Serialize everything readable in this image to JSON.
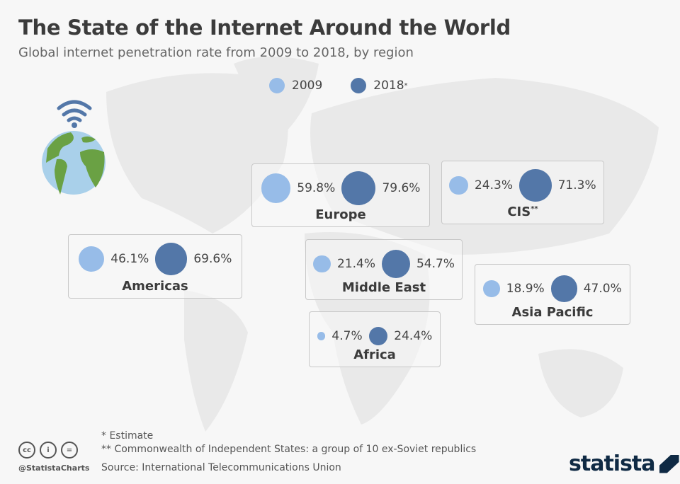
{
  "title": "The State of the Internet Around the World",
  "subtitle": "Global internet penetration rate from 2009 to 2018, by region",
  "chart_data": {
    "type": "bubble",
    "title": "The State of the Internet Around the World",
    "subtitle": "Global internet penetration rate from 2009 to 2018, by region",
    "legend": [
      {
        "label": "2009",
        "color": "#97bce8"
      },
      {
        "label": "2018",
        "mark": "*",
        "color": "#5377a8"
      }
    ],
    "legend_placement": "top-center",
    "categories": [
      "Europe",
      "CIS",
      "Americas",
      "Middle East",
      "Asia Pacific",
      "Africa"
    ],
    "category_marks": [
      "",
      "**",
      "",
      "",
      "",
      ""
    ],
    "series": [
      {
        "name": "2009",
        "values": [
          59.8,
          24.3,
          46.1,
          21.4,
          18.9,
          4.7
        ]
      },
      {
        "name": "2018",
        "values": [
          79.6,
          71.3,
          69.6,
          54.7,
          47.0,
          24.4
        ]
      }
    ],
    "value_labels": {
      "2009": [
        "59.8%",
        "24.3%",
        "46.1%",
        "21.4%",
        "18.9%",
        "4.7%"
      ],
      "2018": [
        "79.6%",
        "71.3%",
        "69.6%",
        "54.7%",
        "47.0%",
        "24.4%"
      ]
    },
    "unit": "%"
  },
  "footnotes": [
    "*   Estimate",
    "** Commonwealth of Independent States: a group of 10 ex-Soviet republics"
  ],
  "source": "Source: International Telecommunications Union",
  "handle": "@StatistaCharts",
  "logo": "statista",
  "license_icons": [
    "cc-icon",
    "by-icon",
    "nd-icon"
  ]
}
